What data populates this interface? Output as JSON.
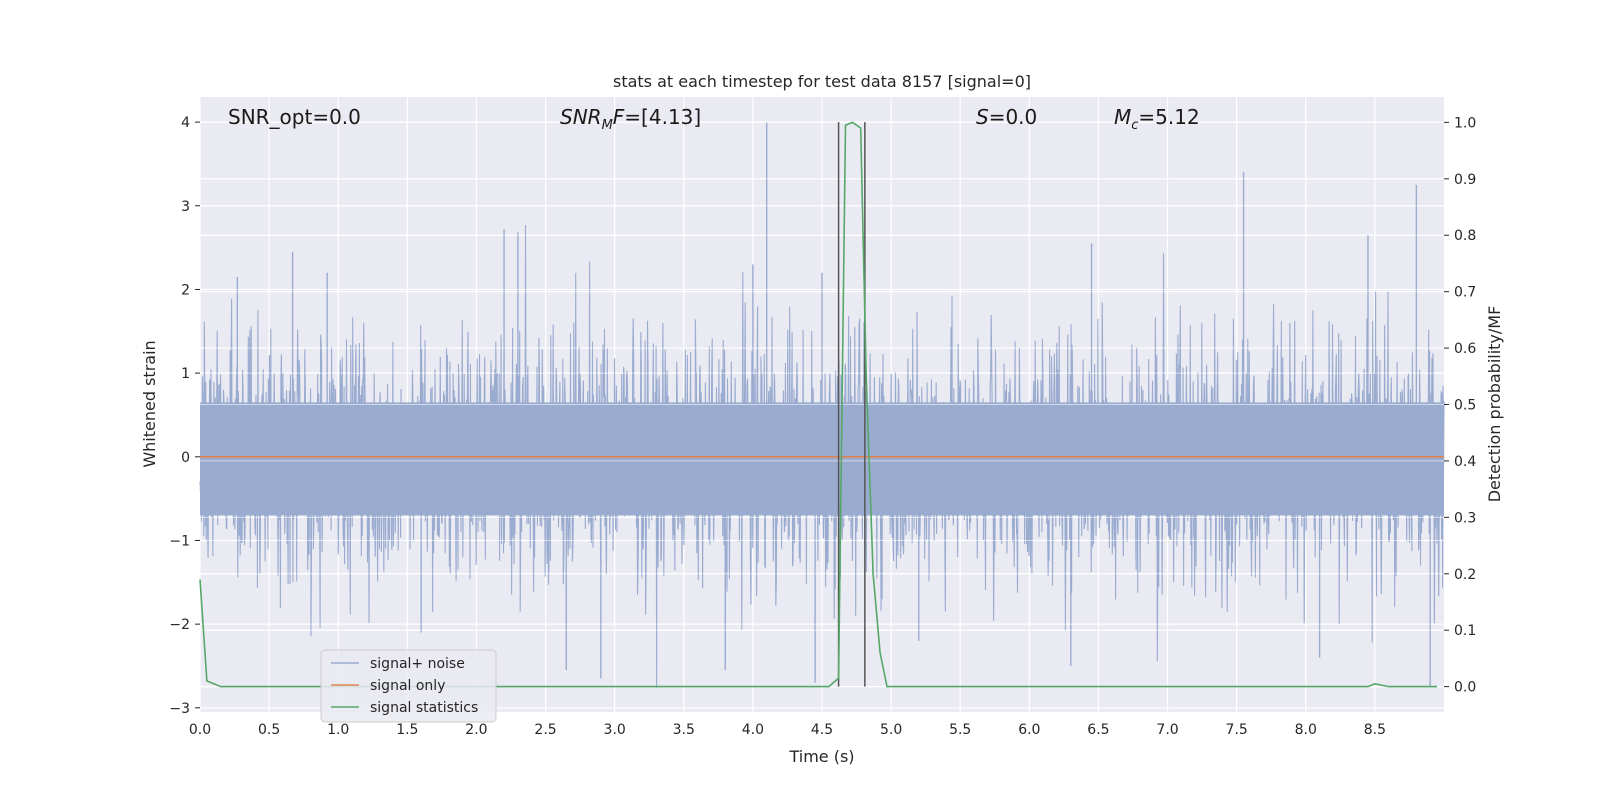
{
  "chart_data": {
    "type": "line",
    "title": "stats at each timestep for test data 8157 [signal=0]",
    "xlabel": "Time (s)",
    "ylabel": "Whitened strain",
    "y2label": "Detection probability/MF",
    "xlim": [
      0.0,
      9.0
    ],
    "ylim": [
      -3.05,
      4.3
    ],
    "y2lim": [
      -0.045,
      1.045
    ],
    "x_ticks": [
      "0.0",
      "0.5",
      "1.0",
      "1.5",
      "2.0",
      "2.5",
      "3.0",
      "3.5",
      "4.0",
      "4.5",
      "5.0",
      "5.5",
      "6.0",
      "6.5",
      "7.0",
      "7.5",
      "8.0",
      "8.5"
    ],
    "y_ticks": [
      "−3",
      "−2",
      "−1",
      "0",
      "1",
      "2",
      "3",
      "4"
    ],
    "y2_ticks": [
      "0.0",
      "0.1",
      "0.2",
      "0.3",
      "0.4",
      "0.5",
      "0.6",
      "0.7",
      "0.8",
      "0.9",
      "1.0"
    ],
    "grid": true,
    "legend_position": "lower-left",
    "colors": {
      "background": "#eaeaf2",
      "grid": "#ffffff",
      "noise": "#9aabd0",
      "signal": "#dd8452",
      "stats": "#55a868",
      "marker": "#555555"
    },
    "series": [
      {
        "name": "signal+ noise",
        "description": "dense whitened strain noise trace",
        "core_band": [
          -0.7,
          0.65
        ],
        "spikes": [
          {
            "x": 4.1,
            "y": 4.0
          },
          {
            "x": 7.55,
            "y": 3.4
          },
          {
            "x": 8.8,
            "y": 3.25
          },
          {
            "x": 2.2,
            "y": 2.72
          },
          {
            "x": 2.3,
            "y": 2.68
          },
          {
            "x": 8.45,
            "y": 2.65
          },
          {
            "x": 6.45,
            "y": 2.55
          },
          {
            "x": 0.67,
            "y": 2.45
          },
          {
            "x": 0.92,
            "y": 2.2
          },
          {
            "x": 0.27,
            "y": 2.15
          },
          {
            "x": 4.0,
            "y": 2.3
          },
          {
            "x": 4.5,
            "y": 2.2
          },
          {
            "x": 2.65,
            "y": -2.55
          },
          {
            "x": 2.9,
            "y": -2.65
          },
          {
            "x": 3.8,
            "y": -2.55
          },
          {
            "x": 4.45,
            "y": -2.7
          },
          {
            "x": 6.3,
            "y": -2.5
          },
          {
            "x": 8.1,
            "y": -2.4
          },
          {
            "x": 8.9,
            "y": -2.75
          },
          {
            "x": 1.6,
            "y": -2.1
          },
          {
            "x": 5.2,
            "y": -2.2
          }
        ]
      },
      {
        "name": "signal only",
        "x": [
          0.0,
          9.0
        ],
        "y": [
          0.0,
          0.0
        ]
      },
      {
        "name": "signal statistics",
        "axis": "right",
        "x": [
          0.0,
          0.05,
          0.1,
          0.15,
          4.55,
          4.62,
          4.67,
          4.72,
          4.78,
          4.82,
          4.87,
          4.92,
          4.97,
          8.45,
          8.5,
          8.6,
          8.65,
          8.95
        ],
        "y": [
          0.19,
          0.01,
          0.005,
          0.0,
          0.0,
          0.015,
          0.995,
          1.0,
          0.99,
          0.55,
          0.2,
          0.06,
          0.0,
          0.0,
          0.005,
          0.0,
          0.0,
          0.0
        ]
      }
    ],
    "markers": [
      4.62,
      4.81
    ],
    "annotations": [
      {
        "label": "SNR_opt=0.0"
      },
      {
        "label": "SNR_MF=[4.13]",
        "math": {
          "pre": "SNR",
          "sub": "M",
          "post": "F",
          "rest": "=[4.13]"
        }
      },
      {
        "label": "S=0.0",
        "math": {
          "pre": "S",
          "rest": "=0.0"
        }
      },
      {
        "label": "M_c=5.12",
        "math": {
          "pre": "M",
          "sub": "c",
          "rest": "=5.12"
        }
      }
    ]
  }
}
